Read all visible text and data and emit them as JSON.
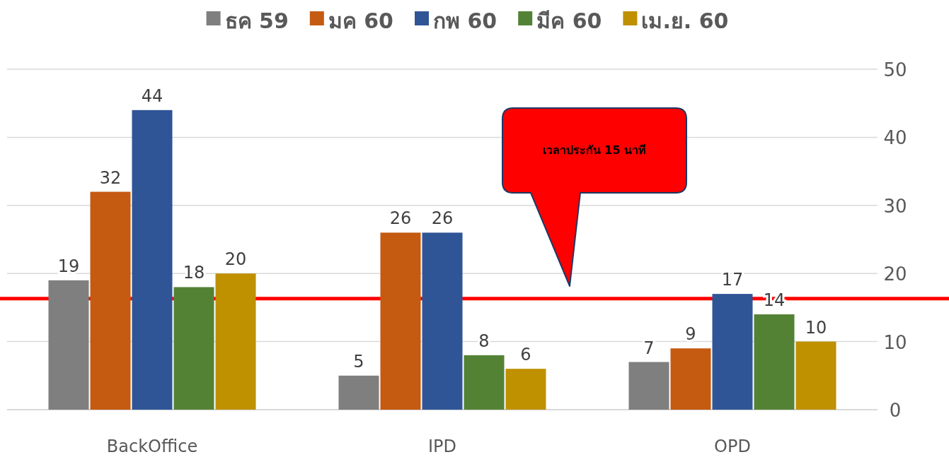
{
  "chart_data": {
    "type": "bar",
    "categories": [
      "BackOffice",
      "IPD",
      "OPD"
    ],
    "series": [
      {
        "name": "ธค 59",
        "color": "#7f7f7f",
        "values": [
          19,
          5,
          7
        ]
      },
      {
        "name": "มค 60",
        "color": "#c55a11",
        "values": [
          32,
          26,
          9
        ]
      },
      {
        "name": "กพ 60",
        "color": "#2f5597",
        "values": [
          44,
          26,
          17
        ]
      },
      {
        "name": "มีค 60",
        "color": "#548235",
        "values": [
          18,
          8,
          14
        ]
      },
      {
        "name": "เม.ย. 60",
        "color": "#bf9000",
        "values": [
          20,
          6,
          10
        ]
      }
    ],
    "ylim": [
      0,
      50
    ],
    "yticks": [
      0,
      10,
      20,
      30,
      40,
      50
    ],
    "grid": "y",
    "legend": "top",
    "data_labels": true,
    "ref_lines": [
      {
        "axis": "y",
        "value": 16.3,
        "color": "#ff0000"
      }
    ],
    "annotations": [
      "เวลาประกัน 15 นาที"
    ]
  }
}
